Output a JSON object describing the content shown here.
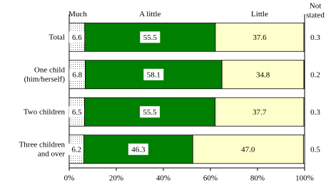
{
  "chart_data": {
    "type": "stacked-bar-horizontal",
    "categories": [
      "Total",
      "One child\n(him/herself)",
      "Two children",
      "Three children\nand over"
    ],
    "series": [
      {
        "name": "Much",
        "color": "#ffffff",
        "pattern": "dotted",
        "values": [
          6.6,
          6.8,
          6.5,
          6.2
        ]
      },
      {
        "name": "A little",
        "color": "#008000",
        "values": [
          55.5,
          58.1,
          55.5,
          46.3
        ]
      },
      {
        "name": "Little",
        "color": "#ffffcc",
        "values": [
          37.6,
          34.8,
          37.7,
          47.0
        ],
        "value_labels": [
          "37.6",
          "34.8",
          "37.7",
          "47.0"
        ]
      },
      {
        "name": "Not\nstated",
        "color": "#ffffff",
        "values": [
          0.3,
          0.2,
          0.3,
          0.5
        ]
      }
    ],
    "xlim": [
      0,
      100
    ],
    "xticks": [
      {
        "value": 0,
        "label": "0%"
      },
      {
        "value": 20,
        "label": "20%"
      },
      {
        "value": 40,
        "label": "40%"
      },
      {
        "value": 60,
        "label": "60%"
      },
      {
        "value": 80,
        "label": "80%"
      },
      {
        "value": 100,
        "label": "100%"
      }
    ]
  }
}
